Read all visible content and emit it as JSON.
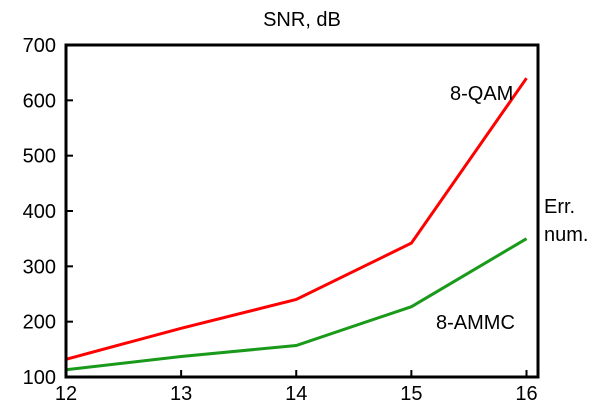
{
  "chart_data": {
    "type": "line",
    "title": "SNR, dB",
    "xlabel": "",
    "ylabel_lines": [
      "Err.",
      "num."
    ],
    "x": [
      12,
      13,
      14,
      15,
      16
    ],
    "xlim": [
      12,
      16.1
    ],
    "ylim": [
      100,
      700
    ],
    "x_ticks": [
      12,
      13,
      14,
      15,
      16
    ],
    "y_ticks": [
      100,
      200,
      300,
      400,
      500,
      600,
      700
    ],
    "grid": false,
    "legend": "none",
    "series": [
      {
        "name": "8-QAM",
        "color": "#ff0000",
        "values": [
          132,
          188,
          240,
          342,
          640
        ]
      },
      {
        "name": "8-AMMC",
        "color": "#1a9a1a",
        "values": [
          113,
          137,
          157,
          227,
          350
        ]
      }
    ]
  }
}
